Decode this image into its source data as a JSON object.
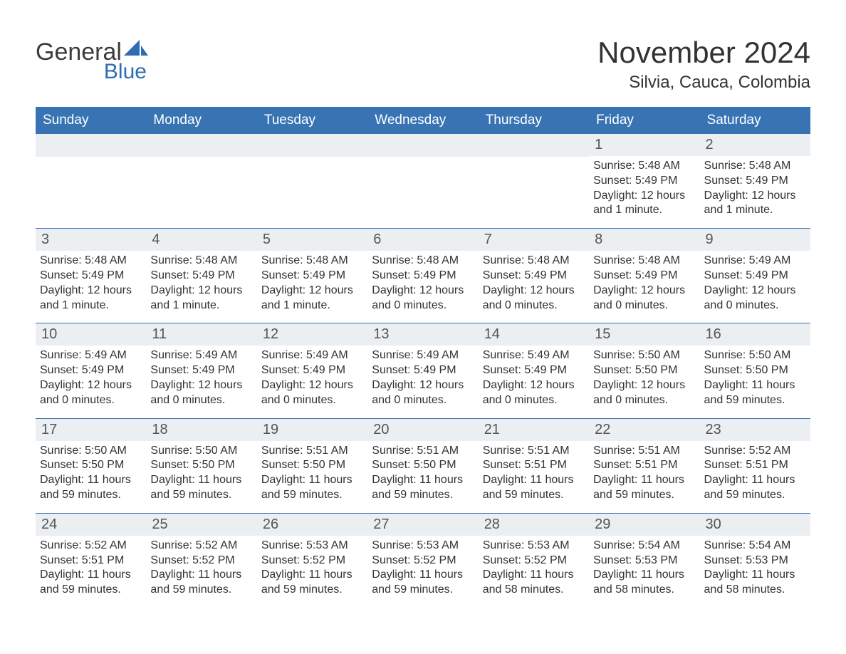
{
  "logo": {
    "text_top": "General",
    "text_bottom": "Blue",
    "sail_color": "#2f6db2",
    "top_color": "#3b3b3b"
  },
  "title": "November 2024",
  "location": "Silvia, Cauca, Colombia",
  "header_bg": "#3874b4",
  "header_fg": "#ffffff",
  "daynum_bg": "#eceff1",
  "daynum_fg": "#555555",
  "body_fg": "#333333",
  "rule_color": "#3874b4",
  "font_family": "Arial, Helvetica, sans-serif",
  "title_fontsize": 42,
  "location_fontsize": 24,
  "dow_fontsize": 19,
  "daynum_fontsize": 20,
  "detail_fontsize": 16,
  "days_of_week": [
    "Sunday",
    "Monday",
    "Tuesday",
    "Wednesday",
    "Thursday",
    "Friday",
    "Saturday"
  ],
  "weeks": [
    [
      null,
      null,
      null,
      null,
      null,
      {
        "n": "1",
        "sunrise": "5:48 AM",
        "sunset": "5:49 PM",
        "daylight": "12 hours and 1 minute."
      },
      {
        "n": "2",
        "sunrise": "5:48 AM",
        "sunset": "5:49 PM",
        "daylight": "12 hours and 1 minute."
      }
    ],
    [
      {
        "n": "3",
        "sunrise": "5:48 AM",
        "sunset": "5:49 PM",
        "daylight": "12 hours and 1 minute."
      },
      {
        "n": "4",
        "sunrise": "5:48 AM",
        "sunset": "5:49 PM",
        "daylight": "12 hours and 1 minute."
      },
      {
        "n": "5",
        "sunrise": "5:48 AM",
        "sunset": "5:49 PM",
        "daylight": "12 hours and 1 minute."
      },
      {
        "n": "6",
        "sunrise": "5:48 AM",
        "sunset": "5:49 PM",
        "daylight": "12 hours and 0 minutes."
      },
      {
        "n": "7",
        "sunrise": "5:48 AM",
        "sunset": "5:49 PM",
        "daylight": "12 hours and 0 minutes."
      },
      {
        "n": "8",
        "sunrise": "5:48 AM",
        "sunset": "5:49 PM",
        "daylight": "12 hours and 0 minutes."
      },
      {
        "n": "9",
        "sunrise": "5:49 AM",
        "sunset": "5:49 PM",
        "daylight": "12 hours and 0 minutes."
      }
    ],
    [
      {
        "n": "10",
        "sunrise": "5:49 AM",
        "sunset": "5:49 PM",
        "daylight": "12 hours and 0 minutes."
      },
      {
        "n": "11",
        "sunrise": "5:49 AM",
        "sunset": "5:49 PM",
        "daylight": "12 hours and 0 minutes."
      },
      {
        "n": "12",
        "sunrise": "5:49 AM",
        "sunset": "5:49 PM",
        "daylight": "12 hours and 0 minutes."
      },
      {
        "n": "13",
        "sunrise": "5:49 AM",
        "sunset": "5:49 PM",
        "daylight": "12 hours and 0 minutes."
      },
      {
        "n": "14",
        "sunrise": "5:49 AM",
        "sunset": "5:49 PM",
        "daylight": "12 hours and 0 minutes."
      },
      {
        "n": "15",
        "sunrise": "5:50 AM",
        "sunset": "5:50 PM",
        "daylight": "12 hours and 0 minutes."
      },
      {
        "n": "16",
        "sunrise": "5:50 AM",
        "sunset": "5:50 PM",
        "daylight": "11 hours and 59 minutes."
      }
    ],
    [
      {
        "n": "17",
        "sunrise": "5:50 AM",
        "sunset": "5:50 PM",
        "daylight": "11 hours and 59 minutes."
      },
      {
        "n": "18",
        "sunrise": "5:50 AM",
        "sunset": "5:50 PM",
        "daylight": "11 hours and 59 minutes."
      },
      {
        "n": "19",
        "sunrise": "5:51 AM",
        "sunset": "5:50 PM",
        "daylight": "11 hours and 59 minutes."
      },
      {
        "n": "20",
        "sunrise": "5:51 AM",
        "sunset": "5:50 PM",
        "daylight": "11 hours and 59 minutes."
      },
      {
        "n": "21",
        "sunrise": "5:51 AM",
        "sunset": "5:51 PM",
        "daylight": "11 hours and 59 minutes."
      },
      {
        "n": "22",
        "sunrise": "5:51 AM",
        "sunset": "5:51 PM",
        "daylight": "11 hours and 59 minutes."
      },
      {
        "n": "23",
        "sunrise": "5:52 AM",
        "sunset": "5:51 PM",
        "daylight": "11 hours and 59 minutes."
      }
    ],
    [
      {
        "n": "24",
        "sunrise": "5:52 AM",
        "sunset": "5:51 PM",
        "daylight": "11 hours and 59 minutes."
      },
      {
        "n": "25",
        "sunrise": "5:52 AM",
        "sunset": "5:52 PM",
        "daylight": "11 hours and 59 minutes."
      },
      {
        "n": "26",
        "sunrise": "5:53 AM",
        "sunset": "5:52 PM",
        "daylight": "11 hours and 59 minutes."
      },
      {
        "n": "27",
        "sunrise": "5:53 AM",
        "sunset": "5:52 PM",
        "daylight": "11 hours and 59 minutes."
      },
      {
        "n": "28",
        "sunrise": "5:53 AM",
        "sunset": "5:52 PM",
        "daylight": "11 hours and 58 minutes."
      },
      {
        "n": "29",
        "sunrise": "5:54 AM",
        "sunset": "5:53 PM",
        "daylight": "11 hours and 58 minutes."
      },
      {
        "n": "30",
        "sunrise": "5:54 AM",
        "sunset": "5:53 PM",
        "daylight": "11 hours and 58 minutes."
      }
    ]
  ],
  "labels": {
    "sunrise_prefix": "Sunrise: ",
    "sunset_prefix": "Sunset: ",
    "daylight_prefix": "Daylight: "
  }
}
